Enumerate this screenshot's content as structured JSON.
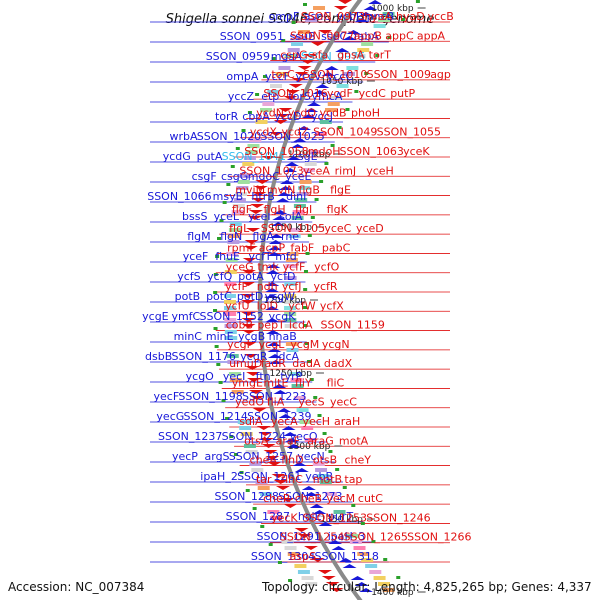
{
  "title": "Shigella sonnei Ss046, complete genome",
  "footer": {
    "accession_label": "Accession:",
    "accession": "NC_007384",
    "topology_label": "Topology:",
    "topology": "circular",
    "length_label": "Length:",
    "length": "4,825,265 bp",
    "genes_label": "Genes:",
    "genes": "4,337"
  },
  "colors": {
    "forward_strand": "#e01010",
    "reverse_strand": "#1818d8",
    "highlight": "#33bbee",
    "backbone": "#8a8a8a"
  },
  "scale_ticks": [
    "1000 kbp",
    "1050 kbp",
    "1100 kbp",
    "1150 kbp",
    "1200 kbp",
    "1250 kbp",
    "1300 kbp",
    "1350 kbp",
    "1400 kbp"
  ],
  "left_genes": [
    {
      "text": "ompF"
    },
    {
      "text": "asnC"
    },
    {
      "text": "ycbP"
    },
    {
      "text": "pncB"
    },
    {
      "text": "SSON_0951"
    },
    {
      "text": "ssuB"
    },
    {
      "text": "ssuC"
    },
    {
      "text": "fabA"
    },
    {
      "text": "SSON_0959"
    },
    {
      "text": "mgsA"
    },
    {
      "text": "SSON_0976",
      "highlight": true
    },
    {
      "text": "ompA"
    },
    {
      "text": "yccF"
    },
    {
      "text": "yccV"
    },
    {
      "text": "yccC"
    },
    {
      "text": "yccZ"
    },
    {
      "text": "etp"
    },
    {
      "text": "torS"
    },
    {
      "text": "ymcA"
    },
    {
      "text": "torR"
    },
    {
      "text": "cbpA"
    },
    {
      "text": "yccD"
    },
    {
      "text": "yccJ"
    },
    {
      "text": "wrbA"
    },
    {
      "text": "SSON_1020"
    },
    {
      "text": "SSON_1025"
    },
    {
      "text": "ycdG"
    },
    {
      "text": "putA"
    },
    {
      "text": "SSON_1041",
      "highlight": true
    },
    {
      "text": "csgE"
    },
    {
      "text": "csgF"
    },
    {
      "text": "csgG"
    },
    {
      "text": "mdoC"
    },
    {
      "text": "yceE"
    },
    {
      "text": "SSON_1066"
    },
    {
      "text": "msyB"
    },
    {
      "text": "htrB"
    },
    {
      "text": "dinI"
    },
    {
      "text": "bssS"
    },
    {
      "text": "yceL"
    },
    {
      "text": "yceI"
    },
    {
      "text": "solA"
    },
    {
      "text": "flgM"
    },
    {
      "text": "flgN"
    },
    {
      "text": "flgA"
    },
    {
      "text": "rne"
    },
    {
      "text": "yceF"
    },
    {
      "text": "fhuE"
    },
    {
      "text": "ycfT"
    },
    {
      "text": "mfd"
    },
    {
      "text": "ycfS"
    },
    {
      "text": "ycfQ"
    },
    {
      "text": "potA"
    },
    {
      "text": "ycfD"
    },
    {
      "text": "potB"
    },
    {
      "text": "potC"
    },
    {
      "text": "potD"
    },
    {
      "text": "ycgW"
    },
    {
      "text": "ycgE"
    },
    {
      "text": "ymfC"
    },
    {
      "text": "SSON_1152"
    },
    {
      "text": "ycgK"
    },
    {
      "text": "minC"
    },
    {
      "text": "minE"
    },
    {
      "text": "ycgB"
    },
    {
      "text": "nhaB"
    },
    {
      "text": "dsbB"
    },
    {
      "text": "SSON_1176"
    },
    {
      "text": "ycgR"
    },
    {
      "text": "ldcA"
    },
    {
      "text": "ycgO"
    },
    {
      "text": "yecI"
    },
    {
      "text": "ftn"
    },
    {
      "text": "tyrP"
    },
    {
      "text": "yecF"
    },
    {
      "text": "SSON_1198"
    },
    {
      "text": "SSON_1223"
    },
    {
      "text": "yecG"
    },
    {
      "text": "SSON_1214"
    },
    {
      "text": "SSON_1239"
    },
    {
      "text": "SSON_1237"
    },
    {
      "text": "SSON_1224"
    },
    {
      "text": "yecO"
    },
    {
      "text": "yecP"
    },
    {
      "text": "argS"
    },
    {
      "text": "SSON_1257"
    },
    {
      "text": "yecN"
    },
    {
      "text": "ipaH_2"
    },
    {
      "text": "SSON_1261"
    },
    {
      "text": "yebB"
    },
    {
      "text": "SSON_1288"
    },
    {
      "text": "SSON_1273"
    },
    {
      "text": "SSON_1287"
    },
    {
      "text": "holE"
    },
    {
      "text": "purT"
    },
    {
      "text": "SSON_1291"
    },
    {
      "text": "ipaH_3"
    },
    {
      "text": "SSON_1304"
    },
    {
      "text": "SSON_1318"
    }
  ],
  "right_genes": [
    {
      "text": "SSON_0973"
    },
    {
      "text": "hyaA"
    },
    {
      "text": "hyaD"
    },
    {
      "text": "yccB"
    },
    {
      "text": "SSON_0977"
    },
    {
      "text": "appB"
    },
    {
      "text": "appC"
    },
    {
      "text": "appA"
    },
    {
      "text": "cspG"
    },
    {
      "text": "sfa"
    },
    {
      "text": "gnsA"
    },
    {
      "text": "torT"
    },
    {
      "text": "torC"
    },
    {
      "text": "SSON_1010"
    },
    {
      "text": "SSON_1009"
    },
    {
      "text": "agp"
    },
    {
      "text": "SSON_1016"
    },
    {
      "text": "ycdF"
    },
    {
      "text": "ycdC"
    },
    {
      "text": "putP"
    },
    {
      "text": "ycdN"
    },
    {
      "text": "ycdO"
    },
    {
      "text": "ycdB"
    },
    {
      "text": "phoH"
    },
    {
      "text": "ycdX"
    },
    {
      "text": "ycdZ"
    },
    {
      "text": "SSON_1049"
    },
    {
      "text": "SSON_1055"
    },
    {
      "text": "SSON_1058"
    },
    {
      "text": "mdoH"
    },
    {
      "text": "SSON_1063"
    },
    {
      "text": "yceK"
    },
    {
      "text": "SSON_1073"
    },
    {
      "text": "yceA"
    },
    {
      "text": "rimJ"
    },
    {
      "text": "yceH"
    },
    {
      "text": "mviM"
    },
    {
      "text": "mviN"
    },
    {
      "text": "flgB"
    },
    {
      "text": "flgE"
    },
    {
      "text": "flgF"
    },
    {
      "text": "flgH"
    },
    {
      "text": "flgI"
    },
    {
      "text": "flgK"
    },
    {
      "text": "flgL"
    },
    {
      "text": "SSON_1105"
    },
    {
      "text": "yceC"
    },
    {
      "text": "yceD"
    },
    {
      "text": "rpmF"
    },
    {
      "text": "acpP"
    },
    {
      "text": "fabF"
    },
    {
      "text": "pabC"
    },
    {
      "text": "yceG"
    },
    {
      "text": "tmk"
    },
    {
      "text": "ycfF"
    },
    {
      "text": "ycfO"
    },
    {
      "text": "ycfP"
    },
    {
      "text": "ndh"
    },
    {
      "text": "ycfJ"
    },
    {
      "text": "ycfR"
    },
    {
      "text": "ycfU"
    },
    {
      "text": "lolD"
    },
    {
      "text": "ycfW"
    },
    {
      "text": "ycfX"
    },
    {
      "text": "cobB"
    },
    {
      "text": "pepT"
    },
    {
      "text": "icdA"
    },
    {
      "text": "SSON_1159"
    },
    {
      "text": "ycgI"
    },
    {
      "text": "ycgL"
    },
    {
      "text": "ycgM"
    },
    {
      "text": "ycgN"
    },
    {
      "text": "umuD"
    },
    {
      "text": "fadR"
    },
    {
      "text": "dadA"
    },
    {
      "text": "dadX"
    },
    {
      "text": "ymgE"
    },
    {
      "text": "mltE"
    },
    {
      "text": "fliY"
    },
    {
      "text": "fliC"
    },
    {
      "text": "yedO"
    },
    {
      "text": "fliA"
    },
    {
      "text": "yecS"
    },
    {
      "text": "yecC"
    },
    {
      "text": "sdiA"
    },
    {
      "text": "yecA"
    },
    {
      "text": "yecH"
    },
    {
      "text": "araH"
    },
    {
      "text": "otsA"
    },
    {
      "text": "araF"
    },
    {
      "text": "araG"
    },
    {
      "text": "motA"
    },
    {
      "text": "cheA"
    },
    {
      "text": "flhD"
    },
    {
      "text": "otsB"
    },
    {
      "text": "cheY"
    },
    {
      "text": "tar"
    },
    {
      "text": "flhC"
    },
    {
      "text": "motB"
    },
    {
      "text": "tap"
    },
    {
      "text": "cheR"
    },
    {
      "text": "cheB"
    },
    {
      "text": "yecM"
    },
    {
      "text": "cutC"
    },
    {
      "text": "yecK"
    },
    {
      "text": "SSON_1253"
    },
    {
      "text": "SSON_1246"
    },
    {
      "text": "SSON_1254"
    },
    {
      "text": "SSON_1265"
    },
    {
      "text": "SSON_1266"
    },
    {
      "text": "aspS"
    }
  ]
}
